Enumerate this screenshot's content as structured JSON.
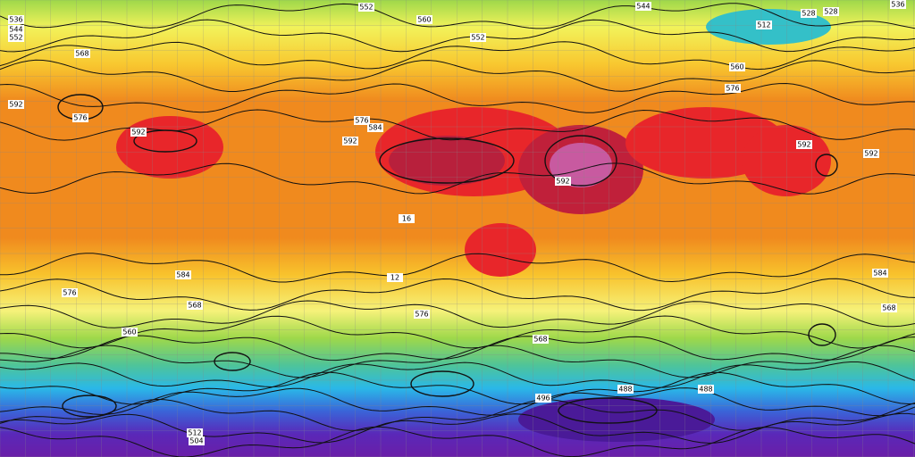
{
  "map": {
    "contour_labels": [
      536,
      544,
      552,
      552,
      560,
      544,
      536,
      512,
      528,
      528,
      568,
      576,
      592,
      592,
      576,
      584,
      592,
      592,
      592,
      592,
      584,
      576,
      568,
      576,
      568,
      568,
      584,
      560,
      496,
      488,
      488,
      512,
      504,
      576,
      560,
      552,
      16,
      12
    ]
  }
}
